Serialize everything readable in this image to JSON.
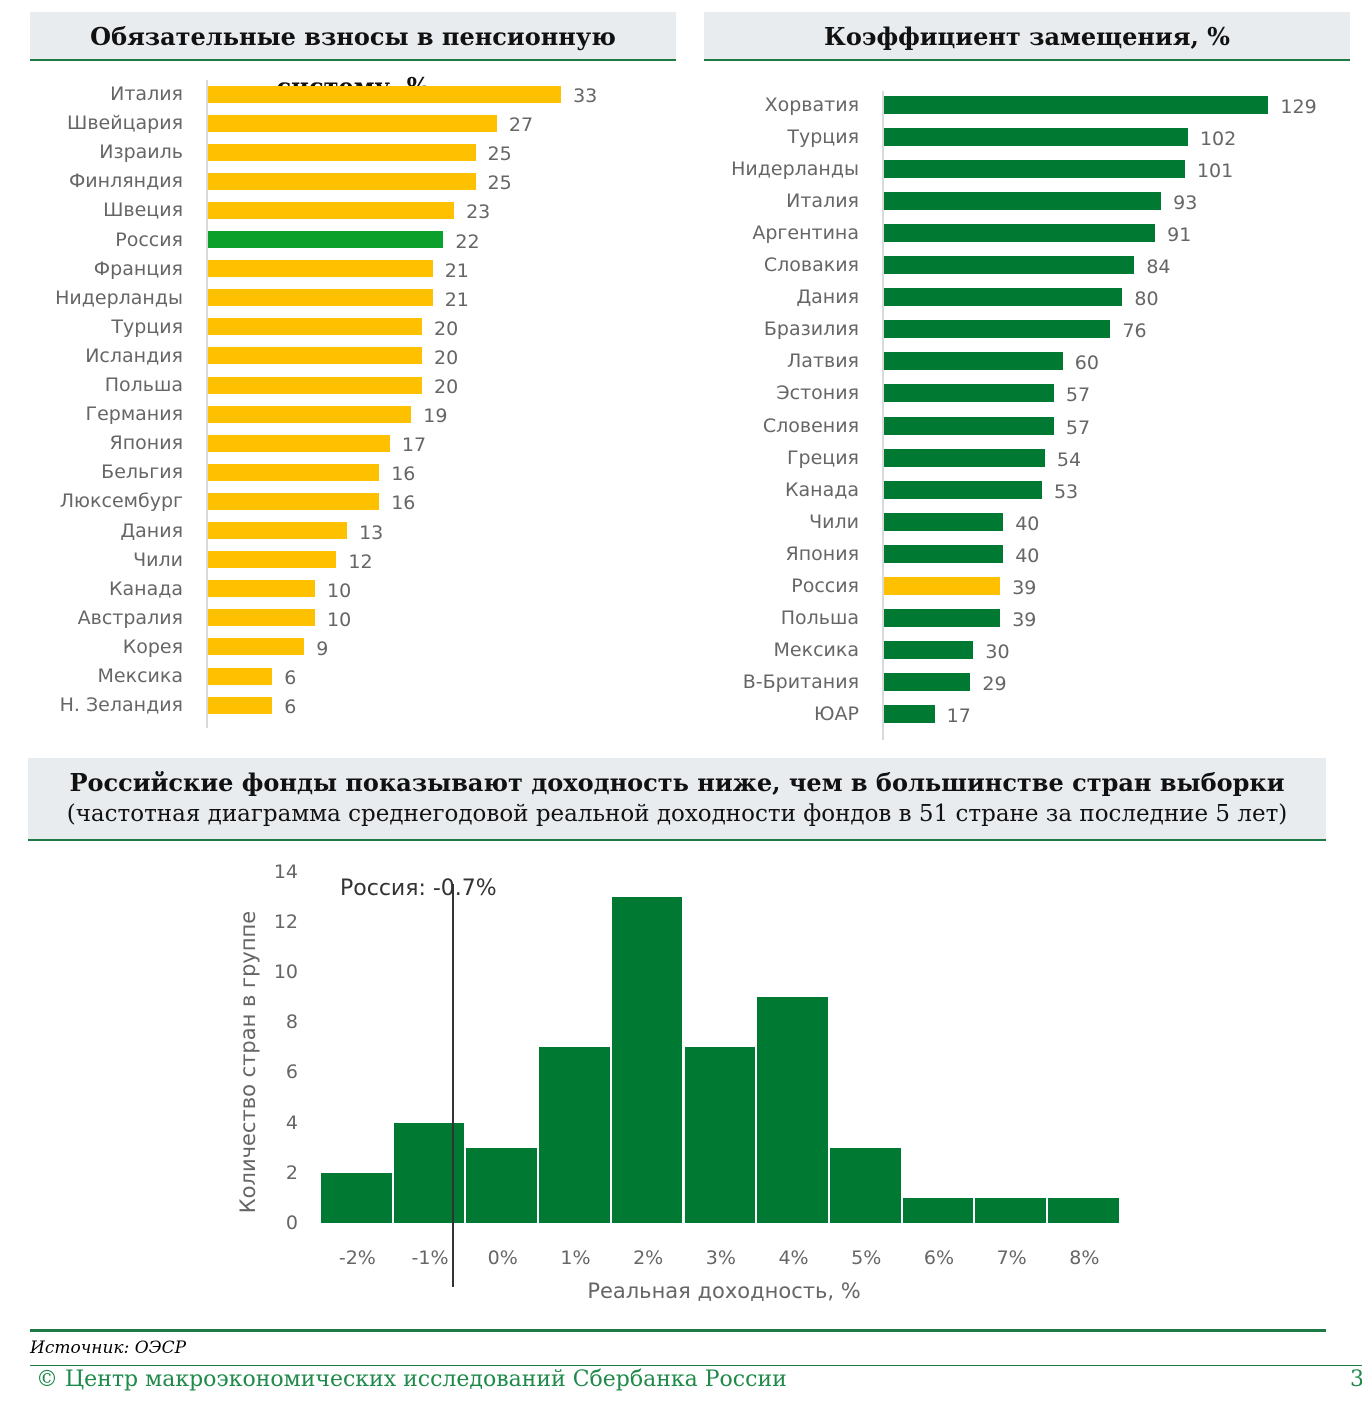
{
  "colors": {
    "yellow": "#ffc000",
    "green": "#007a33",
    "highlight_green": "#0aa02a",
    "header_bg": "#e9ecef",
    "rule": "#1e7a45"
  },
  "chart_data": [
    {
      "type": "bar",
      "orientation": "horizontal",
      "title": "Обязательные взносы в пенсионную систему, %",
      "categories": [
        "Италия",
        "Швейцария",
        "Израиль",
        "Финляндия",
        "Швеция",
        "Россия",
        "Франция",
        "Нидерланды",
        "Турция",
        "Исландия",
        "Польша",
        "Германия",
        "Япония",
        "Бельгия",
        "Люксембург",
        "Дания",
        "Чили",
        "Канада",
        "Австралия",
        "Корея",
        "Мексика",
        "Н. Зеландия"
      ],
      "values": [
        33,
        27,
        25,
        25,
        23,
        22,
        21,
        21,
        20,
        20,
        20,
        19,
        17,
        16,
        16,
        13,
        12,
        10,
        10,
        9,
        6,
        6
      ],
      "highlight": "Россия",
      "xlim": [
        0,
        33
      ]
    },
    {
      "type": "bar",
      "orientation": "horizontal",
      "title": "Коэффициент замещения, %",
      "categories": [
        "Хорватия",
        "Турция",
        "Нидерланды",
        "Италия",
        "Аргентина",
        "Словакия",
        "Дания",
        "Бразилия",
        "Латвия",
        "Эстония",
        "Словения",
        "Греция",
        "Канада",
        "Чили",
        "Япония",
        "Россия",
        "Польша",
        "Мексика",
        "В-Британия",
        "ЮАР"
      ],
      "values": [
        129,
        102,
        101,
        93,
        91,
        84,
        80,
        76,
        60,
        57,
        57,
        54,
        53,
        40,
        40,
        39,
        39,
        30,
        29,
        17
      ],
      "highlight": "Россия",
      "xlim": [
        0,
        129
      ]
    },
    {
      "type": "bar",
      "subtype": "histogram",
      "title": "Российские фонды показывают доходность ниже, чем в большинстве стран выборки",
      "subtitle": "(частотная диаграмма среднегодовой реальной доходности фондов в 51 стране за последние 5 лет)",
      "categories": [
        "-2%",
        "-1%",
        "0%",
        "1%",
        "2%",
        "3%",
        "4%",
        "5%",
        "6%",
        "7%",
        "8%"
      ],
      "values": [
        2,
        4,
        3,
        7,
        13,
        7,
        9,
        3,
        1,
        1,
        1
      ],
      "xlabel": "Реальная доходность, %",
      "ylabel": "Количество стран в группе",
      "yticks": [
        "0",
        "2",
        "4",
        "6",
        "8",
        "10",
        "12",
        "14"
      ],
      "ylim": [
        0,
        14
      ],
      "annotation": {
        "text": "Россия: -0.7%",
        "x": -0.7
      }
    }
  ],
  "footer": {
    "source": "Источник: ОЭСР",
    "copyright": "© Центр макроэкономических исследований Сбербанка России",
    "page": "3"
  }
}
